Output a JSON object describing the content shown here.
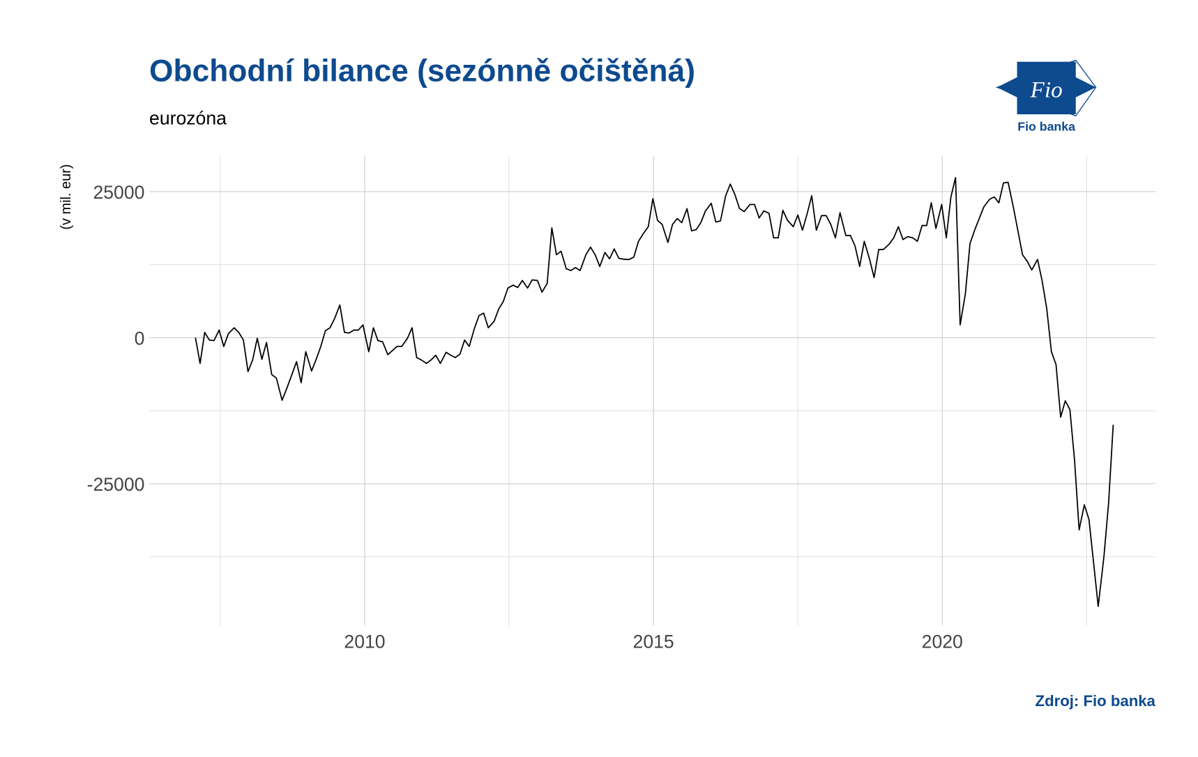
{
  "chart_data": {
    "type": "line",
    "title": "Obchodní bilance (sezónně očištěná)",
    "subtitle": "eurozóna",
    "y_label": "(v mil. eur)",
    "source": "Zdroj: Fio banka",
    "logo_text": "Fio",
    "logo_caption": "Fio banka",
    "color": "#000000",
    "grid": true,
    "xlim": [
      2006.27,
      2023.69
    ],
    "ylim": [
      -49300,
      31100
    ],
    "xticks": [
      2010,
      2015,
      2020
    ],
    "yticks": [
      -25000,
      0,
      25000
    ],
    "minor_xticks": [
      2007.5,
      2012.5,
      2017.5,
      2022.5
    ],
    "minor_yticks": [
      -37500,
      -12500,
      12500
    ],
    "x": [
      2007.07,
      2007.15,
      2007.23,
      2007.31,
      2007.39,
      2007.48,
      2007.56,
      2007.64,
      2007.74,
      2007.82,
      2007.9,
      2007.98,
      2008.06,
      2008.14,
      2008.22,
      2008.3,
      2008.39,
      2008.47,
      2008.57,
      2008.65,
      2008.74,
      2008.82,
      2008.9,
      2008.98,
      2009.08,
      2009.16,
      2009.24,
      2009.32,
      2009.4,
      2009.48,
      2009.57,
      2009.65,
      2009.73,
      2009.81,
      2009.89,
      2009.97,
      2010.07,
      2010.15,
      2010.23,
      2010.31,
      2010.4,
      2010.48,
      2010.56,
      2010.64,
      2010.74,
      2010.82,
      2010.9,
      2010.98,
      2011.07,
      2011.15,
      2011.23,
      2011.31,
      2011.41,
      2011.49,
      2011.57,
      2011.65,
      2011.73,
      2011.81,
      2011.9,
      2011.98,
      2012.06,
      2012.14,
      2012.24,
      2012.32,
      2012.4,
      2012.48,
      2012.57,
      2012.65,
      2012.73,
      2012.82,
      2012.9,
      2012.99,
      2013.07,
      2013.16,
      2013.24,
      2013.32,
      2013.4,
      2013.49,
      2013.57,
      2013.65,
      2013.73,
      2013.83,
      2013.91,
      2013.99,
      2014.07,
      2014.16,
      2014.24,
      2014.32,
      2014.4,
      2014.5,
      2014.58,
      2014.66,
      2014.74,
      2014.83,
      2014.91,
      2014.99,
      2015.07,
      2015.15,
      2015.25,
      2015.33,
      2015.41,
      2015.49,
      2015.58,
      2015.66,
      2015.74,
      2015.82,
      2015.9,
      2016.0,
      2016.08,
      2016.16,
      2016.25,
      2016.33,
      2016.41,
      2016.49,
      2016.57,
      2016.67,
      2016.75,
      2016.83,
      2016.91,
      2017.0,
      2017.08,
      2017.16,
      2017.24,
      2017.32,
      2017.42,
      2017.5,
      2017.58,
      2017.66,
      2017.74,
      2017.82,
      2017.91,
      2017.99,
      2018.07,
      2018.15,
      2018.23,
      2018.33,
      2018.41,
      2018.49,
      2018.57,
      2018.65,
      2018.74,
      2018.82,
      2018.9,
      2018.98,
      2019.08,
      2019.16,
      2019.24,
      2019.32,
      2019.4,
      2019.49,
      2019.57,
      2019.65,
      2019.73,
      2019.81,
      2019.89,
      2019.99,
      2020.07,
      2020.15,
      2020.23,
      2020.31,
      2020.4,
      2020.48,
      2020.56,
      2020.64,
      2020.72,
      2020.82,
      2020.9,
      2020.98,
      2021.06,
      2021.14,
      2021.23,
      2021.31,
      2021.39,
      2021.47,
      2021.55,
      2021.65,
      2021.73,
      2021.81,
      2021.89,
      2021.97,
      2022.05,
      2022.13,
      2022.21,
      2022.29,
      2022.37,
      2022.46,
      2022.54,
      2022.62,
      2022.7,
      2022.8,
      2022.88,
      2022.96
    ],
    "values": [
      0,
      -4400,
      900,
      -400,
      -500,
      1300,
      -1500,
      700,
      1700,
      900,
      -400,
      -5800,
      -3800,
      -100,
      -3700,
      -800,
      -6300,
      -6900,
      -10700,
      -8700,
      -6300,
      -4100,
      -7700,
      -2400,
      -5700,
      -3700,
      -1500,
      1200,
      1700,
      3300,
      5600,
      900,
      800,
      1300,
      1300,
      2200,
      -2400,
      1700,
      -500,
      -700,
      -2900,
      -2200,
      -1500,
      -1500,
      -100,
      1700,
      -3400,
      -3800,
      -4400,
      -3800,
      -3000,
      -4400,
      -2500,
      -3000,
      -3400,
      -2800,
      -400,
      -1500,
      1600,
      3800,
      4200,
      1700,
      2800,
      4900,
      6200,
      8500,
      9000,
      8600,
      9800,
      8500,
      9900,
      9800,
      7800,
      9300,
      18800,
      14200,
      14800,
      11800,
      11500,
      12000,
      11500,
      14200,
      15500,
      14200,
      12200,
      14600,
      13500,
      15200,
      13600,
      13400,
      13400,
      13800,
      16500,
      17900,
      19000,
      23800,
      20100,
      19400,
      16300,
      19400,
      20400,
      19700,
      22100,
      18300,
      18500,
      19700,
      21700,
      23000,
      19800,
      20000,
      24300,
      26300,
      24500,
      22100,
      21600,
      22800,
      22800,
      20500,
      21700,
      21300,
      17100,
      17100,
      21800,
      20100,
      19000,
      21000,
      18400,
      21200,
      24300,
      18400,
      20900,
      20900,
      19400,
      17100,
      21400,
      17500,
      17500,
      15700,
      12200,
      16500,
      13500,
      10300,
      15100,
      15100,
      16000,
      17100,
      19000,
      16800,
      17300,
      17100,
      16500,
      19200,
      19200,
      23100,
      18700,
      22800,
      17100,
      24100,
      27400,
      2200,
      7500,
      16100,
      18400,
      20400,
      22400,
      23700,
      24100,
      23100,
      26500,
      26600,
      22400,
      18300,
      14200,
      13100,
      11600,
      13400,
      9700,
      4900,
      -2400,
      -4600,
      -13600,
      -10800,
      -12300,
      -20900,
      -32900,
      -28600,
      -31100,
      -38500,
      -46000,
      -37400,
      -28300,
      -14900
    ]
  }
}
